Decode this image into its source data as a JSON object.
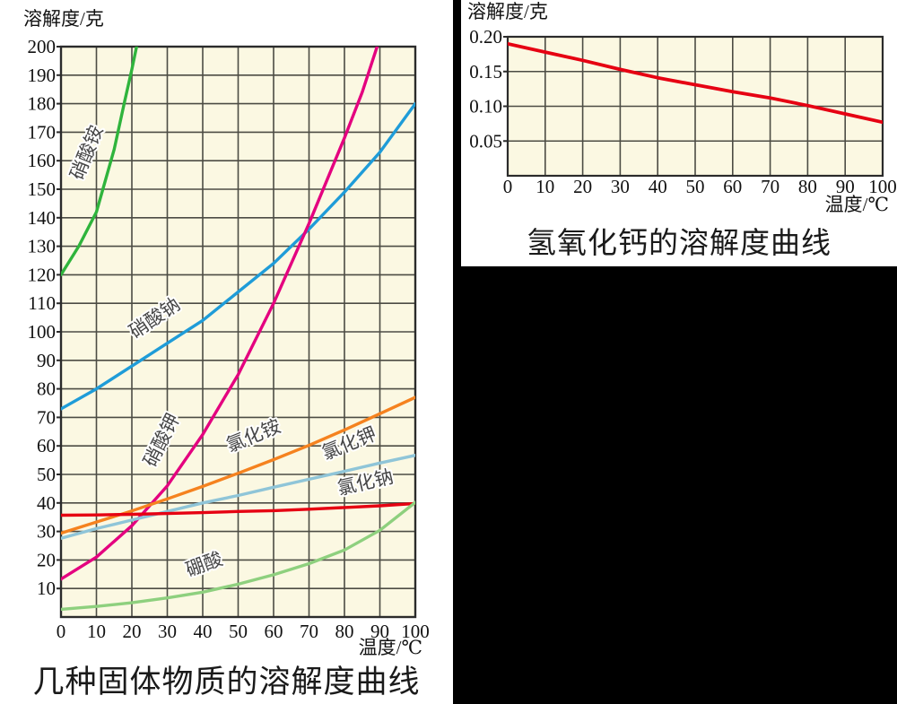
{
  "page": {
    "background": "#000000",
    "panel_background": "#ffffff"
  },
  "chart_data": [
    {
      "type": "line",
      "title": "几种固体物质的溶解度曲线",
      "xlabel": "温度/℃",
      "ylabel": "溶解度/克",
      "xlim": [
        0,
        100
      ],
      "ylim": [
        0,
        200
      ],
      "grid": true,
      "legend_position": "inline-curve-labels",
      "xtick_values": [
        0,
        10,
        20,
        30,
        40,
        50,
        60,
        70,
        80,
        90,
        100
      ],
      "xtick_labels": [
        "0",
        "10",
        "20",
        "30",
        "40",
        "50",
        "60",
        "70",
        "80",
        "90",
        "100"
      ],
      "ytick_values": [
        10,
        20,
        30,
        40,
        50,
        60,
        70,
        80,
        90,
        100,
        110,
        120,
        130,
        140,
        150,
        160,
        170,
        180,
        190,
        200
      ],
      "ytick_labels": [
        "10",
        "20",
        "30",
        "40",
        "50",
        "60",
        "70",
        "80",
        "90",
        "100",
        "110",
        "120",
        "130",
        "140",
        "150",
        "160",
        "170",
        "180",
        "190",
        "200"
      ],
      "colors": {
        "plot_background": "#fbf8e2",
        "grid": "#4c4c44",
        "border": "#2b2b2b",
        "tick_text": "#111111"
      },
      "series": [
        {
          "id": "ammonium-nitrate",
          "name": "硝酸铵",
          "color": "#2fb43c",
          "points": [
            [
              0,
              120
            ],
            [
              5,
              130
            ],
            [
              10,
              142
            ],
            [
              15,
              164
            ],
            [
              18,
              181
            ],
            [
              20,
              192
            ],
            [
              22,
              204
            ]
          ]
        },
        {
          "id": "sodium-nitrate",
          "name": "硝酸钠",
          "color": "#1f9cd8",
          "points": [
            [
              0,
              73
            ],
            [
              10,
              80
            ],
            [
              20,
              88
            ],
            [
              30,
              96
            ],
            [
              40,
              104
            ],
            [
              50,
              114
            ],
            [
              60,
              124
            ],
            [
              70,
              136
            ],
            [
              80,
              149
            ],
            [
              90,
              163
            ],
            [
              100,
              180
            ]
          ]
        },
        {
          "id": "potassium-nitrate",
          "name": "硝酸钾",
          "color": "#e4007f",
          "points": [
            [
              0,
              13.3
            ],
            [
              10,
              21
            ],
            [
              20,
              32
            ],
            [
              30,
              46
            ],
            [
              40,
              64
            ],
            [
              50,
              85
            ],
            [
              60,
              110
            ],
            [
              70,
              138
            ],
            [
              80,
              168
            ],
            [
              85,
              184
            ],
            [
              90,
              203
            ],
            [
              92,
              212
            ]
          ]
        },
        {
          "id": "ammonium-chloride",
          "name": "氯化铵",
          "color": "#f5821f",
          "points": [
            [
              0,
              29.4
            ],
            [
              10,
              33.3
            ],
            [
              20,
              37.2
            ],
            [
              30,
              41.4
            ],
            [
              40,
              45.8
            ],
            [
              50,
              50.4
            ],
            [
              60,
              55.2
            ],
            [
              70,
              60.2
            ],
            [
              80,
              65.6
            ],
            [
              90,
              71.3
            ],
            [
              100,
              77
            ]
          ]
        },
        {
          "id": "potassium-chloride",
          "name": "氯化钾",
          "color": "#8fc5d8",
          "points": [
            [
              0,
              27.6
            ],
            [
              10,
              31
            ],
            [
              20,
              34
            ],
            [
              30,
              37
            ],
            [
              40,
              40
            ],
            [
              50,
              42.6
            ],
            [
              60,
              45.5
            ],
            [
              70,
              48.3
            ],
            [
              80,
              51.1
            ],
            [
              90,
              54
            ],
            [
              100,
              56.7
            ]
          ]
        },
        {
          "id": "sodium-chloride",
          "name": "氯化钠",
          "color": "#e60012",
          "points": [
            [
              0,
              35.7
            ],
            [
              10,
              35.8
            ],
            [
              20,
              36
            ],
            [
              30,
              36.3
            ],
            [
              40,
              36.6
            ],
            [
              50,
              37
            ],
            [
              60,
              37.3
            ],
            [
              70,
              37.8
            ],
            [
              80,
              38.4
            ],
            [
              90,
              39
            ],
            [
              100,
              39.8
            ]
          ]
        },
        {
          "id": "boric-acid",
          "name": "硼酸",
          "color": "#8ed07e",
          "points": [
            [
              0,
              2.7
            ],
            [
              10,
              3.7
            ],
            [
              20,
              5
            ],
            [
              30,
              6.7
            ],
            [
              40,
              8.7
            ],
            [
              50,
              11.5
            ],
            [
              60,
              14.8
            ],
            [
              70,
              18.7
            ],
            [
              80,
              23.5
            ],
            [
              90,
              30.4
            ],
            [
              100,
              40.2
            ]
          ]
        }
      ],
      "curve_labels": [
        {
          "text": "硝酸铵",
          "x": 8.9,
          "y": 162,
          "rotate": -68
        },
        {
          "text": "硝酸钠",
          "x": 27.4,
          "y": 103,
          "rotate": -34
        },
        {
          "text": "硝酸钾",
          "x": 30,
          "y": 61,
          "rotate": -63
        },
        {
          "text": "氯化铵",
          "x": 55,
          "y": 61.5,
          "rotate": -22
        },
        {
          "text": "氯化钾",
          "x": 82,
          "y": 58.8,
          "rotate": -22
        },
        {
          "text": "氯化钠",
          "x": 86.3,
          "y": 45,
          "rotate": -13
        },
        {
          "text": "硼酸",
          "x": 41,
          "y": 16.4,
          "rotate": -20
        }
      ]
    },
    {
      "type": "line",
      "title": "氢氧化钙的溶解度曲线",
      "xlabel": "温度/℃",
      "ylabel": "溶解度/克",
      "xlim": [
        0,
        100
      ],
      "ylim": [
        0,
        0.2
      ],
      "grid": true,
      "legend_position": "none",
      "xtick_values": [
        0,
        10,
        20,
        30,
        40,
        50,
        60,
        70,
        80,
        90,
        100
      ],
      "xtick_labels": [
        "0",
        "10",
        "20",
        "30",
        "40",
        "50",
        "60",
        "70",
        "80",
        "90",
        "100"
      ],
      "ytick_values": [
        0.05,
        0.1,
        0.15,
        0.2
      ],
      "ytick_labels": [
        "0.05",
        "0.10",
        "0.15",
        "0.20"
      ],
      "colors": {
        "plot_background": "#fbf8e2",
        "grid": "#4c4c44",
        "border": "#2b2b2b",
        "tick_text": "#111111"
      },
      "series": [
        {
          "id": "calcium-hydroxide",
          "name": "氢氧化钙",
          "color": "#e60012",
          "points": [
            [
              0,
              0.19
            ],
            [
              10,
              0.178
            ],
            [
              20,
              0.166
            ],
            [
              30,
              0.153
            ],
            [
              40,
              0.141
            ],
            [
              50,
              0.131
            ],
            [
              60,
              0.121
            ],
            [
              70,
              0.112
            ],
            [
              80,
              0.101
            ],
            [
              90,
              0.089
            ],
            [
              100,
              0.077
            ]
          ]
        }
      ],
      "curve_labels": []
    }
  ]
}
